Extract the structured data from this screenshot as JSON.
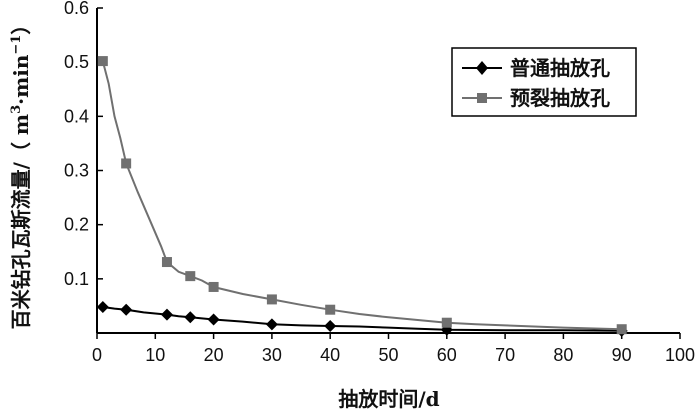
{
  "chart_data": {
    "type": "line",
    "xlabel": "抽放时间/d",
    "ylabel_main": "百米钻孔瓦斯流量/（ m",
    "ylabel_sup1": "3",
    "ylabel_mid": "·min",
    "ylabel_sup2": "−1",
    "ylabel_end": "）",
    "xlim": [
      0,
      100
    ],
    "ylim": [
      0,
      0.6
    ],
    "x_ticks": [
      "0",
      "10",
      "20",
      "30",
      "40",
      "50",
      "60",
      "70",
      "80",
      "90",
      "100"
    ],
    "y_ticks": [
      "0.1",
      "0.2",
      "0.3",
      "0.4",
      "0.5",
      "0.6"
    ],
    "grid": false,
    "legend_position": "top-right",
    "series": [
      {
        "name": "普通抽放孔",
        "marker": "diamond",
        "color": "#000000",
        "points": [
          [
            1,
            0.048
          ],
          [
            5,
            0.043
          ],
          [
            12,
            0.034
          ],
          [
            16,
            0.029
          ],
          [
            20,
            0.025
          ],
          [
            30,
            0.016
          ],
          [
            40,
            0.013
          ],
          [
            60,
            0.006
          ],
          [
            90,
            0.004
          ]
        ],
        "curve": [
          [
            1,
            0.048
          ],
          [
            3,
            0.045
          ],
          [
            5,
            0.043
          ],
          [
            8,
            0.038
          ],
          [
            10,
            0.036
          ],
          [
            12,
            0.034
          ],
          [
            14,
            0.031
          ],
          [
            16,
            0.029
          ],
          [
            18,
            0.027
          ],
          [
            20,
            0.025
          ],
          [
            25,
            0.021
          ],
          [
            30,
            0.016
          ],
          [
            35,
            0.014
          ],
          [
            40,
            0.013
          ],
          [
            45,
            0.012
          ],
          [
            50,
            0.01
          ],
          [
            55,
            0.008
          ],
          [
            60,
            0.006
          ],
          [
            70,
            0.005
          ],
          [
            80,
            0.005
          ],
          [
            90,
            0.004
          ]
        ]
      },
      {
        "name": "预裂抽放孔",
        "marker": "square",
        "color": "#707070",
        "points": [
          [
            1,
            0.502
          ],
          [
            5,
            0.313
          ],
          [
            12,
            0.131
          ],
          [
            16,
            0.105
          ],
          [
            20,
            0.085
          ],
          [
            30,
            0.062
          ],
          [
            40,
            0.043
          ],
          [
            60,
            0.019
          ],
          [
            90,
            0.007
          ]
        ],
        "curve": [
          [
            1,
            0.502
          ],
          [
            2,
            0.46
          ],
          [
            3,
            0.4
          ],
          [
            4,
            0.36
          ],
          [
            5,
            0.313
          ],
          [
            7,
            0.26
          ],
          [
            9,
            0.21
          ],
          [
            11,
            0.16
          ],
          [
            12,
            0.131
          ],
          [
            14,
            0.113
          ],
          [
            16,
            0.105
          ],
          [
            18,
            0.097
          ],
          [
            20,
            0.085
          ],
          [
            25,
            0.072
          ],
          [
            30,
            0.062
          ],
          [
            35,
            0.052
          ],
          [
            40,
            0.043
          ],
          [
            45,
            0.035
          ],
          [
            50,
            0.029
          ],
          [
            55,
            0.024
          ],
          [
            60,
            0.019
          ],
          [
            65,
            0.016
          ],
          [
            70,
            0.014
          ],
          [
            80,
            0.01
          ],
          [
            90,
            0.007
          ]
        ]
      }
    ]
  }
}
